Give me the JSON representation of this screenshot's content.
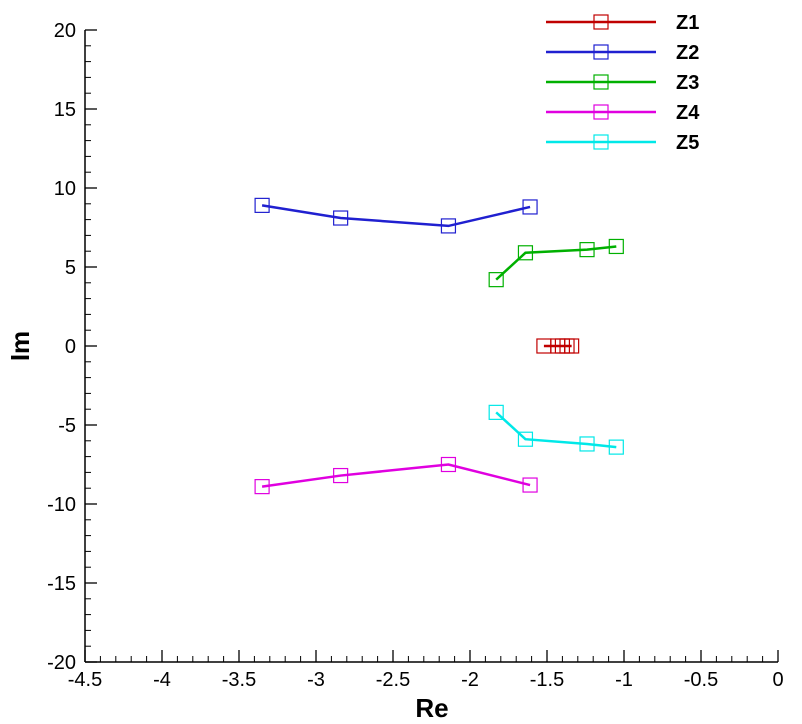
{
  "chart_data": {
    "type": "line",
    "title": "",
    "xlabel": "Re",
    "ylabel": "Im",
    "xlim": [
      -4.5,
      0
    ],
    "ylim": [
      -20,
      20
    ],
    "x_ticks": [
      -4.5,
      -4,
      -3.5,
      -3,
      -2.5,
      -2,
      -1.5,
      -1,
      -0.5,
      0
    ],
    "x_tick_labels": [
      "-4.5",
      "-4",
      "-3.5",
      "-3",
      "-2.5",
      "-2",
      "-1.5",
      "-1",
      "-0.5",
      "0"
    ],
    "y_ticks": [
      -20,
      -15,
      -10,
      -5,
      0,
      5,
      10,
      15,
      20
    ],
    "y_tick_labels": [
      "-20",
      "-15",
      "-10",
      "-5",
      "0",
      "5",
      "10",
      "15",
      "20"
    ],
    "grid": false,
    "legend_position": "top-right",
    "marker": "square",
    "series": [
      {
        "name": "Z1",
        "color": "#c00000",
        "x": [
          -1.52,
          -1.43,
          -1.4,
          -1.37,
          -1.34
        ],
        "y": [
          0,
          0,
          0,
          0,
          0
        ]
      },
      {
        "name": "Z2",
        "color": "#2020d0",
        "x": [
          -3.35,
          -2.84,
          -2.14,
          -1.61
        ],
        "y": [
          8.9,
          8.1,
          7.6,
          8.8
        ]
      },
      {
        "name": "Z3",
        "color": "#00b000",
        "x": [
          -1.83,
          -1.64,
          -1.24,
          -1.05
        ],
        "y": [
          4.2,
          5.9,
          6.1,
          6.3
        ]
      },
      {
        "name": "Z4",
        "color": "#e000e0",
        "x": [
          -3.35,
          -2.84,
          -2.14,
          -1.61
        ],
        "y": [
          -8.9,
          -8.2,
          -7.5,
          -8.8
        ]
      },
      {
        "name": "Z5",
        "color": "#00e8e8",
        "x": [
          -1.83,
          -1.64,
          -1.24,
          -1.05
        ],
        "y": [
          -4.2,
          -5.9,
          -6.2,
          -6.4
        ]
      }
    ]
  }
}
